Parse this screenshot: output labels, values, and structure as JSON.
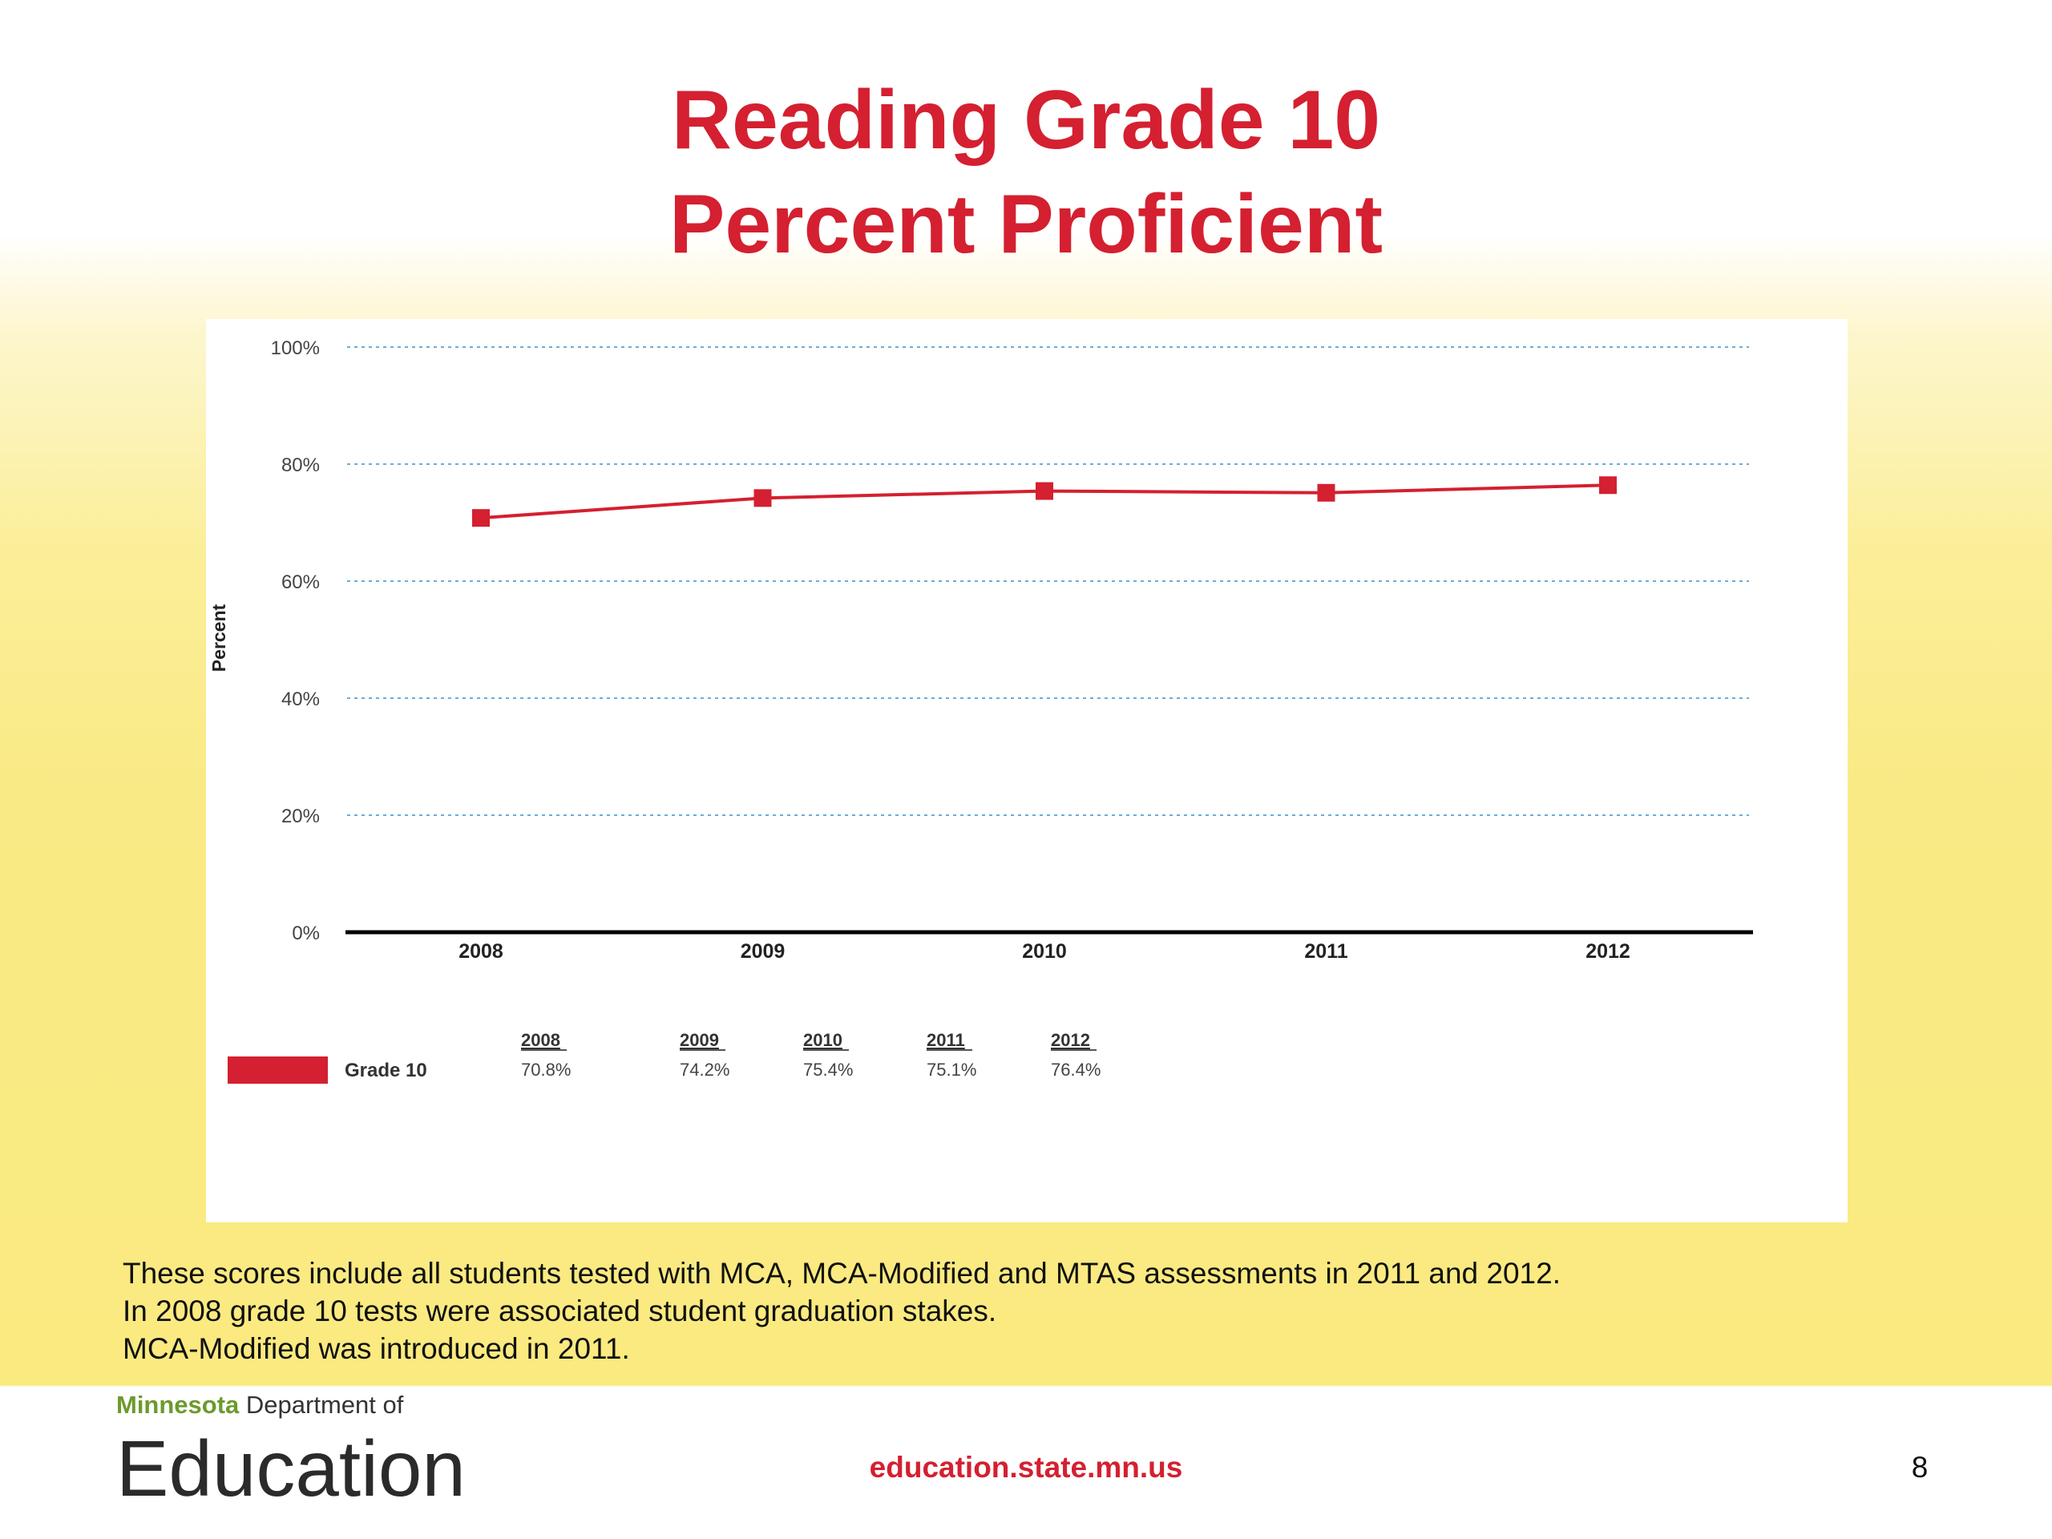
{
  "slide": {
    "title_line1": "Reading Grade 10",
    "title_line2": "Percent Proficient",
    "notes": [
      "These scores include all students tested with MCA, MCA-Modified and MTAS assessments in 2011 and 2012.",
      "In 2008 grade 10 tests were associated student graduation stakes.",
      "MCA-Modified was introduced in 2011."
    ],
    "logo": {
      "state": "Minnesota",
      "department": "Department of",
      "name": "Education"
    },
    "url": "education.state.mn.us",
    "page_number": "8"
  },
  "colors": {
    "accent": "#d42030",
    "grid": "#6aaed6",
    "logo_green": "#6c9a2c"
  },
  "chart_data": {
    "type": "line",
    "title": "",
    "xlabel": "",
    "ylabel": "Percent",
    "categories": [
      "2008",
      "2009",
      "2010",
      "2011",
      "2012"
    ],
    "series": [
      {
        "name": "Grade 10",
        "values": [
          70.8,
          74.2,
          75.4,
          75.1,
          76.4
        ],
        "color": "#d42030",
        "marker": "square"
      }
    ],
    "ylim": [
      0,
      100
    ],
    "yticks": [
      0,
      20,
      40,
      60,
      80,
      100
    ],
    "ytick_labels": [
      "0%",
      "20%",
      "40%",
      "60%",
      "80%",
      "100%"
    ],
    "grid": true,
    "grid_style": "dotted",
    "legend": "bottom-left",
    "data_table": {
      "years": [
        "2008",
        "2009",
        "2010",
        "2011",
        "2012"
      ],
      "values": [
        "70.8%",
        "74.2%",
        "75.4%",
        "75.1%",
        "76.4%"
      ]
    }
  }
}
